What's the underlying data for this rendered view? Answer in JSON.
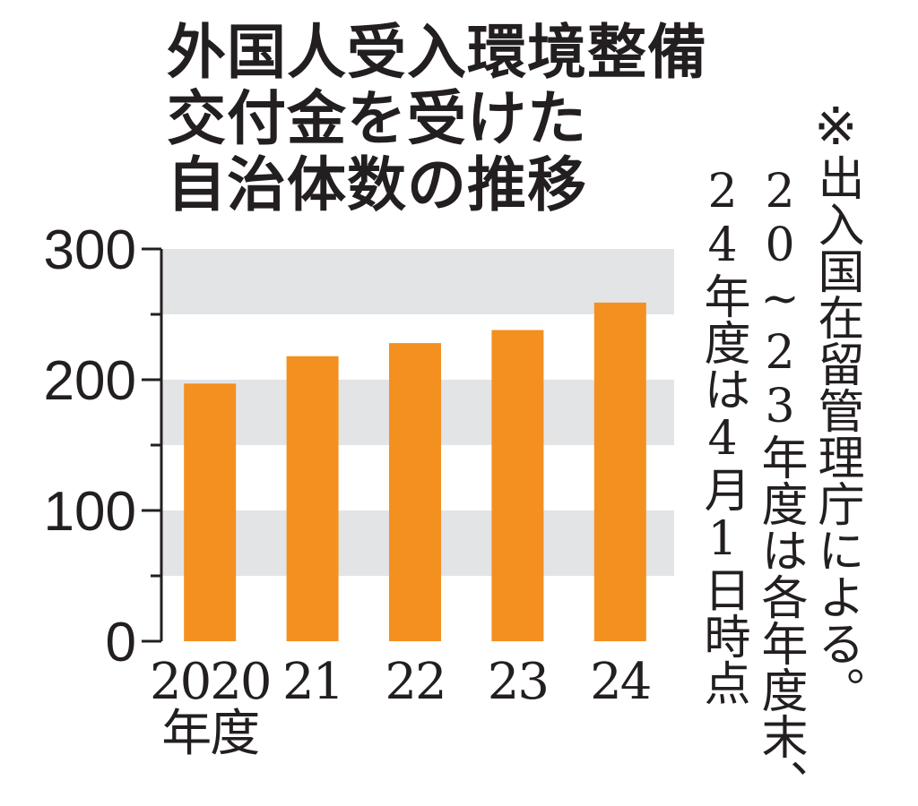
{
  "title_lines": [
    "外国人受入環境整備",
    "交付金を受けた",
    "自治体数の推移"
  ],
  "note": {
    "mark": "※",
    "col1": "出入国在留管理庁による。",
    "col2": "20~23年度は各年度末、",
    "col3": "24年度は4月1日時点"
  },
  "colors": {
    "bar": "#f39020",
    "band": "#e3e4e6",
    "axis": "#231f20"
  },
  "chart_data": {
    "type": "bar",
    "categories": [
      "2020\n年度",
      "21",
      "22",
      "23",
      "24"
    ],
    "values": [
      197,
      218,
      228,
      238,
      259
    ],
    "yticks": [
      0,
      100,
      200,
      300
    ],
    "ylim": [
      0,
      300
    ],
    "title": "外国人受入環境整備交付金を受けた自治体数の推移"
  }
}
